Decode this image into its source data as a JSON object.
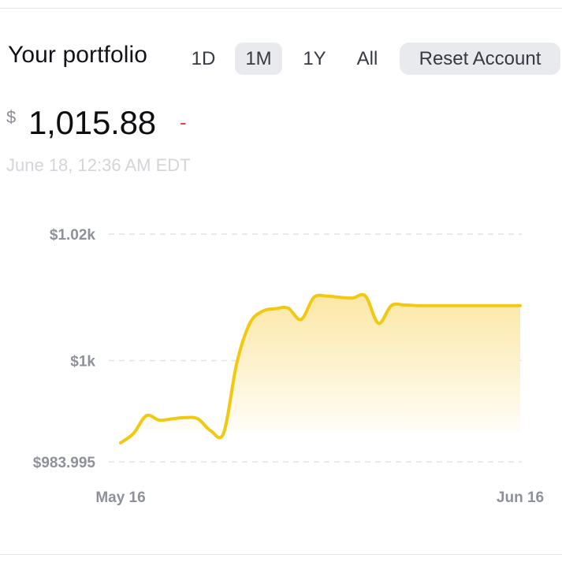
{
  "header": {
    "title": "Your portfolio",
    "ranges": [
      {
        "label": "1D",
        "active": false
      },
      {
        "label": "1M",
        "active": true
      },
      {
        "label": "1Y",
        "active": false
      },
      {
        "label": "All",
        "active": false
      }
    ],
    "reset_label": "Reset Account"
  },
  "portfolio": {
    "currency_symbol": "$",
    "value": "1,015.88",
    "change": "-",
    "timestamp": "June 18, 12:36 AM EDT"
  },
  "colors": {
    "line": "#f2c811",
    "fill_top": "#fbe6a0",
    "change_negative": "#e0453c"
  },
  "chart_data": {
    "type": "area",
    "x_tick_labels": [
      "May 16",
      "Jun 16"
    ],
    "y_tick_labels": [
      "$1.02k",
      "$1k",
      "$983.995"
    ],
    "ylim": [
      983.995,
      1020
    ],
    "grid": true,
    "x": [
      "May 16",
      "May 17",
      "May 18",
      "May 19",
      "May 20",
      "May 21",
      "May 22",
      "May 23",
      "May 24",
      "May 25",
      "May 26",
      "May 27",
      "May 28",
      "May 29",
      "May 30",
      "May 31",
      "Jun 1",
      "Jun 2",
      "Jun 3",
      "Jun 4",
      "Jun 5",
      "Jun 6",
      "Jun 7",
      "Jun 8",
      "Jun 9",
      "Jun 10",
      "Jun 11",
      "Jun 12",
      "Jun 13",
      "Jun 14",
      "Jun 15",
      "Jun 16"
    ],
    "values": [
      987.0,
      988.5,
      991.3,
      990.6,
      990.8,
      991.0,
      990.8,
      988.9,
      988.6,
      999.5,
      1005.8,
      1007.8,
      1008.2,
      1008.3,
      1006.5,
      1010.0,
      1010.2,
      1010.0,
      1009.9,
      1010.2,
      1005.9,
      1008.7,
      1008.8,
      1008.7,
      1008.7,
      1008.7,
      1008.7,
      1008.7,
      1008.7,
      1008.7,
      1008.7,
      1008.7
    ]
  }
}
